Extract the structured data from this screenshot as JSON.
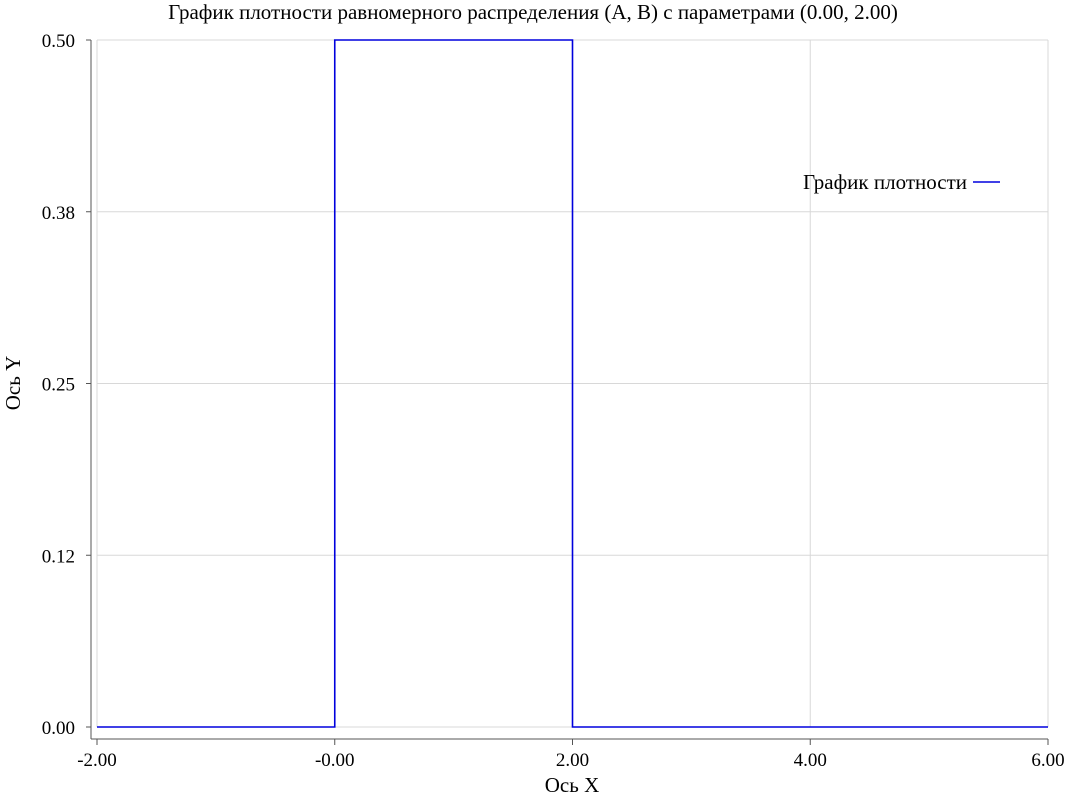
{
  "chart_data": {
    "type": "line",
    "title": "График плотности равномерного распределения (A, B) с параметрами (0.00, 2.00)",
    "xlabel": "Ось X",
    "ylabel": "Ось Y",
    "xlim": [
      -2,
      6
    ],
    "ylim": [
      0,
      0.5
    ],
    "x_ticks": [
      -2,
      0,
      2,
      4,
      6
    ],
    "x_tick_labels": [
      "-2.00",
      "-0.00",
      "2.00",
      "4.00",
      "6.00"
    ],
    "y_ticks": [
      0,
      0.125,
      0.25,
      0.375,
      0.5
    ],
    "y_tick_labels": [
      "0.00",
      "0.12",
      "0.25",
      "0.38",
      "0.50"
    ],
    "grid": true,
    "legend_position": "top-right",
    "series": [
      {
        "name": "График плотности",
        "color": "#0000dd",
        "x": [
          -2,
          0,
          0,
          2,
          2,
          6
        ],
        "y": [
          0,
          0,
          0.5,
          0.5,
          0,
          0
        ]
      }
    ]
  }
}
